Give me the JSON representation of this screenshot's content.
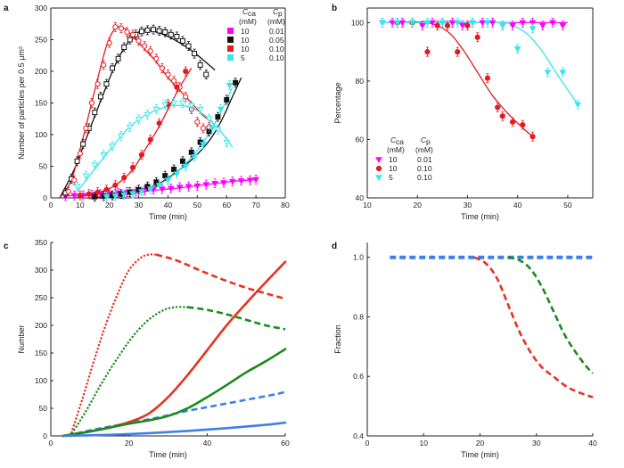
{
  "chart_data": [
    {
      "panel": "a",
      "type": "scatter",
      "xlabel": "Time (min)",
      "ylabel": "Number of particles per 0.5 μm²",
      "xlim": [
        0,
        80
      ],
      "ylim": [
        0,
        300
      ],
      "xticks": [
        0,
        10,
        20,
        30,
        40,
        50,
        60,
        70,
        80
      ],
      "yticks": [
        0,
        50,
        100,
        150,
        200,
        250,
        300
      ],
      "legend": {
        "header_left": "C",
        "header_left_sub": "ca",
        "header_right": "C",
        "header_right_sub": "p",
        "unit_left": "(mM)",
        "unit_right": "(mM)",
        "rows": [
          {
            "color": "#ff00ff",
            "left": "10",
            "right": "0.01"
          },
          {
            "color": "#111111",
            "left": "10",
            "right": "0.05"
          },
          {
            "color": "#e8191e",
            "left": "10",
            "right": "0.10"
          },
          {
            "color": "#33e6ef",
            "left": "5",
            "right": "0.10"
          }
        ]
      },
      "series": [
        {
          "color": "#ff00ff",
          "marker": "triangle-down",
          "filled": true,
          "x": [
            5,
            8,
            11,
            14,
            17,
            20,
            23,
            26,
            29,
            32,
            35,
            38,
            41,
            44,
            47,
            50,
            53,
            56,
            59,
            62,
            65,
            68,
            70
          ],
          "y": [
            3,
            4,
            4,
            5,
            6,
            7,
            8,
            9,
            10,
            12,
            13,
            14,
            15,
            17,
            18,
            19,
            21,
            23,
            24,
            26,
            27,
            28,
            29
          ]
        },
        {
          "color": "#111111",
          "marker": "square",
          "filled": false,
          "x": [
            5,
            7,
            9,
            11,
            13,
            15,
            17,
            19,
            21,
            23,
            25,
            27,
            29,
            31,
            33,
            35,
            37,
            39,
            41,
            43,
            45,
            47,
            49,
            51,
            53
          ],
          "y": [
            8,
            30,
            58,
            85,
            110,
            135,
            160,
            180,
            205,
            220,
            238,
            250,
            258,
            263,
            265,
            266,
            264,
            262,
            258,
            255,
            248,
            240,
            228,
            210,
            195
          ]
        },
        {
          "color": "#111111",
          "marker": "square",
          "filled": true,
          "x": [
            15,
            18,
            21,
            24,
            27,
            30,
            33,
            36,
            39,
            42,
            45,
            48,
            51,
            54,
            57,
            60,
            63
          ],
          "y": [
            2,
            3,
            4,
            6,
            9,
            13,
            18,
            25,
            35,
            45,
            58,
            72,
            88,
            105,
            128,
            155,
            182
          ]
        },
        {
          "color": "#e8191e",
          "marker": "circle",
          "filled": false,
          "x": [
            6,
            8,
            10,
            12,
            14,
            16,
            18,
            20,
            22,
            24,
            26,
            28,
            30,
            32,
            34,
            36,
            38,
            40,
            42,
            44,
            46,
            48,
            50,
            52,
            54
          ],
          "y": [
            10,
            28,
            70,
            110,
            150,
            180,
            210,
            245,
            270,
            268,
            262,
            258,
            248,
            240,
            232,
            220,
            205,
            195,
            185,
            175,
            160,
            140,
            120,
            110,
            112
          ]
        },
        {
          "color": "#e8191e",
          "marker": "circle",
          "filled": true,
          "x": [
            10,
            13,
            16,
            19,
            22,
            25,
            28,
            31,
            34,
            37,
            40,
            43,
            46
          ],
          "y": [
            4,
            6,
            9,
            13,
            20,
            32,
            48,
            68,
            92,
            118,
            148,
            175,
            200
          ]
        },
        {
          "color": "#33e6ef",
          "marker": "triangle-down",
          "filled": false,
          "x": [
            9,
            12,
            15,
            18,
            21,
            24,
            27,
            30,
            33,
            36,
            39,
            42,
            45,
            48,
            51,
            54,
            57,
            60
          ],
          "y": [
            18,
            35,
            52,
            68,
            82,
            98,
            112,
            124,
            132,
            140,
            147,
            150,
            150,
            146,
            140,
            125,
            108,
            88
          ]
        },
        {
          "color": "#33e6ef",
          "marker": "triangle-down",
          "filled": true,
          "x": [
            19,
            22,
            25,
            28,
            31,
            34,
            37,
            40,
            43,
            46,
            49,
            52,
            55,
            58,
            61
          ],
          "y": [
            2,
            3,
            5,
            7,
            10,
            14,
            20,
            28,
            38,
            50,
            65,
            85,
            110,
            140,
            178
          ]
        }
      ],
      "fits": [
        {
          "color": "#ff00ff",
          "x": [
            5,
            20,
            40,
            60,
            70
          ],
          "y": [
            3,
            7,
            14,
            25,
            29
          ]
        },
        {
          "color": "#111111",
          "x": [
            3,
            8,
            13,
            18,
            23,
            28,
            32,
            36,
            40,
            44,
            48,
            52,
            56
          ],
          "y": [
            0,
            45,
            105,
            165,
            220,
            255,
            265,
            262,
            255,
            245,
            233,
            218,
            202
          ]
        },
        {
          "color": "#111111",
          "x": [
            13,
            25,
            35,
            42,
            48,
            54,
            58,
            62,
            65
          ],
          "y": [
            0,
            5,
            18,
            38,
            60,
            90,
            120,
            160,
            190
          ]
        },
        {
          "color": "#e8191e",
          "x": [
            3,
            7,
            11,
            15,
            19,
            22,
            25,
            28,
            32,
            36,
            40,
            44,
            48,
            52,
            55
          ],
          "y": [
            0,
            28,
            95,
            170,
            240,
            268,
            268,
            255,
            235,
            215,
            190,
            170,
            150,
            130,
            120
          ]
        },
        {
          "color": "#e8191e",
          "x": [
            8,
            16,
            22,
            28,
            32,
            36,
            40,
            44,
            48
          ],
          "y": [
            0,
            8,
            20,
            45,
            75,
            105,
            140,
            175,
            205
          ]
        },
        {
          "color": "#33e6ef",
          "x": [
            9,
            14,
            20,
            26,
            32,
            38,
            42,
            46,
            50,
            54,
            58,
            62
          ],
          "y": [
            10,
            40,
            75,
            108,
            130,
            142,
            146,
            145,
            138,
            125,
            105,
            80
          ]
        },
        {
          "color": "#33e6ef",
          "x": [
            18,
            26,
            32,
            38,
            44,
            50,
            55,
            59,
            62
          ],
          "y": [
            0,
            6,
            12,
            24,
            45,
            75,
            110,
            145,
            175
          ]
        }
      ]
    },
    {
      "panel": "b",
      "type": "scatter",
      "xlabel": "Time (min)",
      "ylabel": "Percentage",
      "xlim": [
        10,
        55
      ],
      "ylim": [
        40,
        105
      ],
      "xticks": [
        10,
        20,
        30,
        40,
        50
      ],
      "yticks": [
        40,
        60,
        80,
        100
      ],
      "legend": {
        "header_left": "C",
        "header_left_sub": "ca",
        "header_right": "C",
        "header_right_sub": "p",
        "unit_left": "(mM)",
        "unit_right": "(mM)",
        "rows": [
          {
            "color": "#ff00ff",
            "marker": "triangle-down",
            "left": "10",
            "right": "0.01"
          },
          {
            "color": "#e8191e",
            "marker": "circle",
            "left": "10",
            "right": "0.10"
          },
          {
            "color": "#33e6ef",
            "marker": "triangle-down",
            "left": "5",
            "right": "0.10"
          }
        ]
      },
      "series": [
        {
          "color": "#ff00ff",
          "marker": "triangle-down",
          "x": [
            13,
            15,
            17,
            19,
            21,
            23,
            25,
            27,
            29,
            31,
            33,
            35,
            37,
            39,
            41,
            43,
            45,
            47,
            49
          ],
          "y": [
            100,
            100,
            100,
            100,
            99,
            100,
            100,
            100,
            99,
            100,
            100,
            100,
            99,
            99,
            100,
            100,
            99,
            100,
            99
          ]
        },
        {
          "color": "#e8191e",
          "marker": "circle",
          "x": [
            16,
            19,
            22,
            24,
            26,
            28,
            30,
            32,
            34,
            36,
            37,
            39,
            41,
            43
          ],
          "y": [
            100,
            100,
            90,
            99,
            99,
            90,
            99,
            95,
            81,
            71,
            68,
            66,
            65,
            61
          ]
        },
        {
          "color": "#33e6ef",
          "marker": "triangle-down",
          "x": [
            13,
            16,
            19,
            22,
            25,
            28,
            31,
            34,
            37,
            40,
            43,
            46,
            49,
            52
          ],
          "y": [
            100,
            100,
            100,
            100,
            100,
            100,
            100,
            100,
            99,
            91,
            98,
            83,
            83,
            72
          ]
        }
      ],
      "fits": [
        {
          "color": "#ff00ff",
          "x": [
            13,
            50
          ],
          "y": [
            100,
            100
          ]
        },
        {
          "color": "#e8191e",
          "x": [
            16,
            22,
            26,
            29,
            32,
            35,
            38,
            41,
            43
          ],
          "y": [
            100,
            100,
            97,
            91,
            83,
            75,
            69,
            64,
            61
          ]
        },
        {
          "color": "#33e6ef",
          "x": [
            13,
            36,
            39,
            42,
            45,
            48,
            50,
            52
          ],
          "y": [
            100,
            100,
            99,
            96,
            90,
            82,
            77,
            72
          ]
        }
      ]
    },
    {
      "panel": "c",
      "type": "line",
      "xlabel": "Time (min)",
      "ylabel": "Number",
      "xlim": [
        0,
        60
      ],
      "ylim": [
        0,
        350
      ],
      "xticks": [
        0,
        20,
        40,
        60
      ],
      "yticks": [
        0,
        50,
        100,
        150,
        200,
        250,
        300,
        350
      ],
      "series": [
        {
          "color": "#e8321e",
          "style": "dotted",
          "x": [
            5,
            8,
            11,
            14,
            17,
            20,
            23,
            25,
            27
          ],
          "y": [
            0,
            65,
            135,
            200,
            255,
            300,
            322,
            328,
            328
          ]
        },
        {
          "color": "#e8321e",
          "style": "dashed",
          "x": [
            27,
            32,
            38,
            44,
            50,
            55,
            60
          ],
          "y": [
            328,
            318,
            300,
            283,
            268,
            258,
            248
          ]
        },
        {
          "color": "#1a8a1a",
          "style": "dotted",
          "x": [
            5,
            9,
            13,
            17,
            21,
            25,
            29,
            32,
            35
          ],
          "y": [
            0,
            45,
            95,
            140,
            180,
            210,
            228,
            233,
            233
          ]
        },
        {
          "color": "#1a8a1a",
          "style": "dashed",
          "x": [
            35,
            40,
            45,
            50,
            55,
            60
          ],
          "y": [
            233,
            228,
            220,
            210,
            200,
            193
          ]
        },
        {
          "color": "#3f7fe8",
          "style": "dashed",
          "x": [
            4,
            10,
            16,
            22,
            28,
            34,
            40,
            46,
            52,
            58,
            60
          ],
          "y": [
            0,
            10,
            18,
            26,
            34,
            44,
            52,
            60,
            68,
            76,
            80
          ]
        },
        {
          "color": "#e8321e",
          "style": "solid",
          "x": [
            3,
            10,
            15,
            20,
            25,
            30,
            35,
            40,
            45,
            50,
            55,
            60
          ],
          "y": [
            0,
            8,
            15,
            25,
            40,
            70,
            110,
            155,
            200,
            240,
            278,
            315
          ]
        },
        {
          "color": "#1a8a1a",
          "style": "solid",
          "x": [
            3,
            10,
            15,
            20,
            25,
            30,
            35,
            40,
            45,
            50,
            55,
            60
          ],
          "y": [
            0,
            8,
            15,
            22,
            28,
            36,
            50,
            70,
            92,
            115,
            135,
            157
          ]
        },
        {
          "color": "#3f7fe8",
          "style": "solid",
          "x": [
            3,
            15,
            25,
            35,
            45,
            55,
            60
          ],
          "y": [
            0,
            2,
            5,
            9,
            14,
            20,
            24
          ]
        }
      ]
    },
    {
      "panel": "d",
      "type": "line",
      "xlabel": "Time (min)",
      "ylabel": "Fraction",
      "xlim": [
        0,
        40
      ],
      "ylim": [
        0.4,
        1.05
      ],
      "xticks": [
        0,
        10,
        20,
        30,
        40
      ],
      "yticks": [
        0.4,
        0.6,
        0.8,
        1.0
      ],
      "ytick_labels": [
        "0.4",
        "0.6",
        "0.8",
        "1.0"
      ],
      "series": [
        {
          "color": "#3f7fe8",
          "style": "dashed-thick",
          "x": [
            4,
            40
          ],
          "y": [
            1.0,
            1.0
          ]
        },
        {
          "color": "#1a8a1a",
          "style": "dashed",
          "x": [
            25,
            27,
            29,
            31,
            33,
            35,
            37,
            39,
            40
          ],
          "y": [
            1.0,
            0.99,
            0.96,
            0.9,
            0.82,
            0.74,
            0.68,
            0.63,
            0.61
          ]
        },
        {
          "color": "#e8321e",
          "style": "dashed",
          "x": [
            19,
            21,
            23,
            25,
            27,
            29,
            31,
            33,
            35,
            37,
            40
          ],
          "y": [
            1.0,
            0.98,
            0.93,
            0.84,
            0.75,
            0.68,
            0.63,
            0.6,
            0.57,
            0.55,
            0.53
          ]
        }
      ]
    }
  ]
}
